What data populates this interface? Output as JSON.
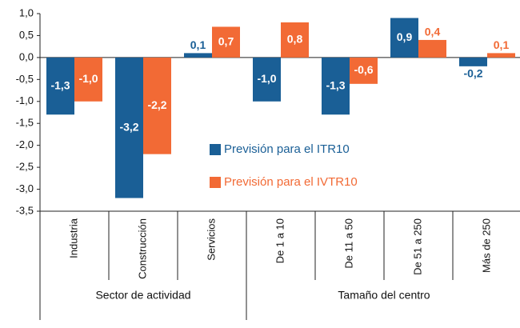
{
  "chart_data": {
    "type": "bar",
    "categories": [
      "Industria",
      "Construcción",
      "Servicios",
      "De 1 a 10",
      "De 11 a 50",
      "De 51 a 250",
      "Más de 250"
    ],
    "groups": [
      {
        "label": "Sector de actividad",
        "span": 3
      },
      {
        "label": "Tamaño del centro",
        "span": 4
      }
    ],
    "series": [
      {
        "name": "Previsión para el ITR10",
        "color": "#1a5f96",
        "values": [
          -1.3,
          -3.2,
          0.1,
          -1.0,
          -1.3,
          0.9,
          -0.2
        ],
        "value_labels": [
          "-1,3",
          "-3,2",
          "0,1",
          "-1,0",
          "-1,3",
          "0,9",
          "-0,2"
        ]
      },
      {
        "name": "Previsión para el IVTR10",
        "color": "#f26a35",
        "values": [
          -1.0,
          -2.2,
          0.7,
          0.8,
          -0.6,
          0.4,
          0.1
        ],
        "value_labels": [
          "-1,0",
          "-2,2",
          "0,7",
          "0,8",
          "-0,6",
          "0,4",
          "0,1"
        ]
      }
    ],
    "ylim": [
      -3.5,
      1.0
    ],
    "yticks": [
      {
        "value": -3.5,
        "label": "-3,5"
      },
      {
        "value": -3.0,
        "label": "-3,0"
      },
      {
        "value": -2.5,
        "label": "-2,5"
      },
      {
        "value": -2.0,
        "label": "-2,0"
      },
      {
        "value": -1.5,
        "label": "-1,5"
      },
      {
        "value": -1.0,
        "label": "-1,0"
      },
      {
        "value": -0.5,
        "label": "-0,5"
      },
      {
        "value": 0.0,
        "label": "0,0"
      },
      {
        "value": 0.5,
        "label": "0,5"
      },
      {
        "value": 1.0,
        "label": "1,0"
      }
    ],
    "grid": false
  }
}
